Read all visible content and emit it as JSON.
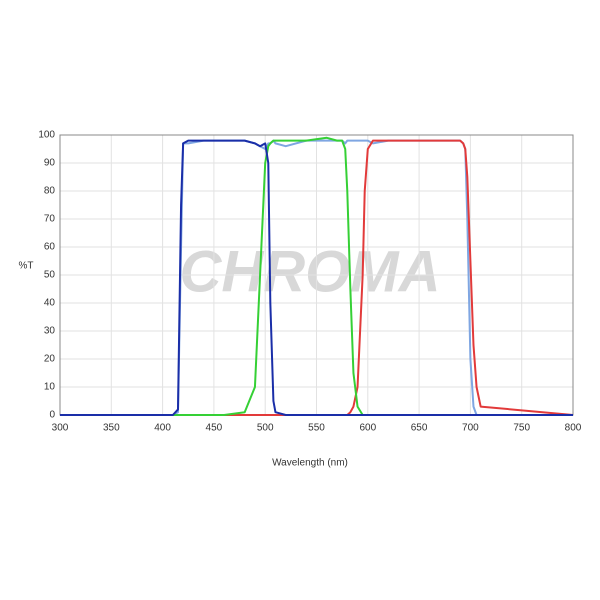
{
  "chart_data": {
    "type": "line",
    "watermark": "CHROMA",
    "xlabel": "Wavelength (nm)",
    "ylabel": "%T",
    "x": [
      300,
      410,
      415,
      418,
      420,
      425,
      440,
      460,
      480,
      490,
      495,
      500,
      503,
      505,
      508,
      510,
      520,
      540,
      560,
      570,
      575,
      578,
      580,
      583,
      586,
      590,
      595,
      597,
      600,
      605,
      620,
      650,
      680,
      690,
      693,
      695,
      697,
      700,
      703,
      706,
      710,
      800
    ],
    "series": [
      {
        "color": "#7fa6e2",
        "values": [
          0,
          0,
          1,
          60,
          97,
          97,
          98,
          98,
          98,
          97,
          96,
          95,
          97,
          97,
          98,
          97,
          96,
          98,
          98,
          98,
          98,
          97,
          98,
          98,
          98,
          98,
          98,
          98,
          98,
          97,
          98,
          98,
          98,
          98,
          97,
          95,
          70,
          20,
          3,
          0,
          0,
          0
        ]
      },
      {
        "color": "#e23a3a",
        "values": [
          0,
          0,
          0,
          0,
          0,
          0,
          0,
          0,
          0,
          0,
          0,
          0,
          0,
          0,
          0,
          0,
          0,
          0,
          0,
          0,
          0,
          0,
          0,
          1,
          3,
          10,
          50,
          80,
          95,
          98,
          98,
          98,
          98,
          98,
          97,
          95,
          85,
          55,
          25,
          10,
          3,
          0
        ]
      },
      {
        "color": "#35d035",
        "values": [
          0,
          0,
          0,
          0,
          0,
          0,
          0,
          0,
          1,
          10,
          50,
          90,
          96,
          97,
          98,
          98,
          98,
          98,
          99,
          98,
          98,
          95,
          80,
          45,
          15,
          3,
          0,
          0,
          0,
          0,
          0,
          0,
          0,
          0,
          0,
          0,
          0,
          0,
          0,
          0,
          0,
          0
        ]
      },
      {
        "color": "#1a2ea8",
        "values": [
          0,
          0,
          2,
          75,
          97,
          98,
          98,
          98,
          98,
          97,
          96,
          97,
          90,
          40,
          5,
          1,
          0,
          0,
          0,
          0,
          0,
          0,
          0,
          0,
          0,
          0,
          0,
          0,
          0,
          0,
          0,
          0,
          0,
          0,
          0,
          0,
          0,
          0,
          0,
          0,
          0,
          0
        ]
      }
    ],
    "xlim": [
      300,
      800
    ],
    "ylim": [
      0,
      100
    ],
    "xticks": [
      300,
      350,
      400,
      450,
      500,
      550,
      600,
      650,
      700,
      750,
      800
    ],
    "yticks": [
      0,
      10,
      20,
      30,
      40,
      50,
      60,
      70,
      80,
      90,
      100
    ],
    "grid": true
  }
}
